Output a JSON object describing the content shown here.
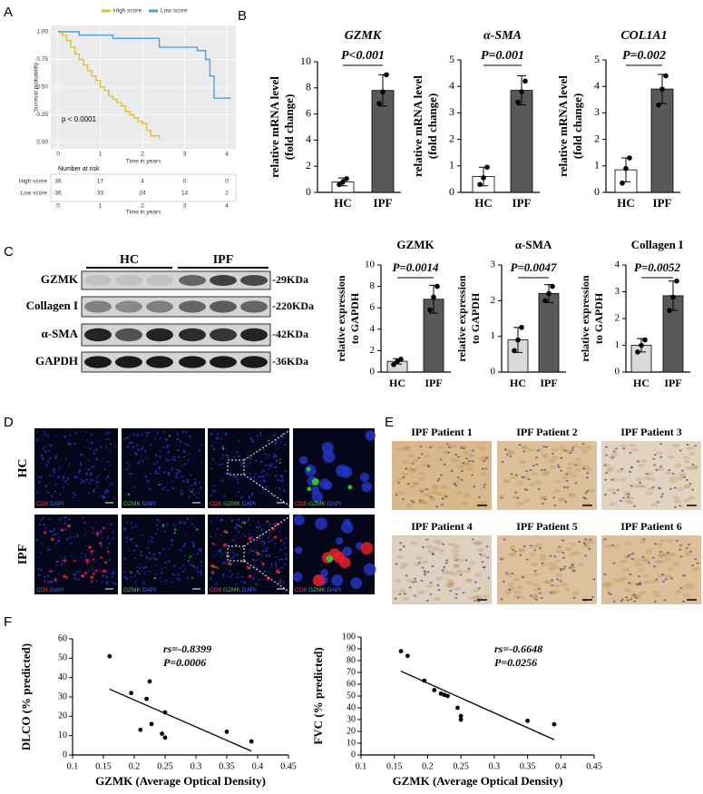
{
  "panel_labels": [
    "A",
    "B",
    "C",
    "D",
    "E",
    "F"
  ],
  "chart_data": [
    {
      "type": "step",
      "series": [
        {
          "name": "High score",
          "color": "#e6bf2e",
          "x": [
            0,
            0.1,
            0.2,
            0.3,
            0.4,
            0.5,
            0.6,
            0.7,
            0.8,
            0.9,
            1.0,
            1.1,
            1.2,
            1.3,
            1.4,
            1.5,
            1.6,
            1.7,
            1.8,
            1.9,
            2.0,
            2.1,
            2.2,
            2.4
          ],
          "values": [
            1,
            0.97,
            0.92,
            0.86,
            0.8,
            0.75,
            0.7,
            0.65,
            0.6,
            0.56,
            0.5,
            0.47,
            0.42,
            0.39,
            0.36,
            0.33,
            0.28,
            0.25,
            0.22,
            0.19,
            0.17,
            0.11,
            0.06,
            0.03
          ]
        },
        {
          "name": "Low score",
          "color": "#4aa3df",
          "x": [
            0,
            0.5,
            1.3,
            2.4,
            3.3,
            3.5,
            3.6,
            3.7,
            4.1
          ],
          "values": [
            1,
            0.97,
            0.94,
            0.86,
            0.83,
            0.75,
            0.6,
            0.4,
            0.4
          ]
        }
      ],
      "xlim": [
        0,
        4
      ],
      "xticks": [
        0,
        1,
        2,
        3,
        4
      ],
      "ylim": [
        0,
        1
      ],
      "yticks": [
        {
          "value": 0,
          "label": "0.00"
        },
        {
          "value": 0.25,
          "label": "0.25"
        },
        {
          "value": 0.5,
          "label": "0.50"
        },
        {
          "value": 0.75,
          "label": "0.75"
        },
        {
          "value": 1,
          "label": "1.00"
        }
      ],
      "xlabel": "Time in years",
      "ylabel": "Survival probability",
      "annotation": "p < 0.0001",
      "risk_table": {
        "title": "Number at risk",
        "xticks": [
          0,
          1,
          2,
          3,
          4
        ],
        "xlabel": "Time in years",
        "rows": [
          {
            "name": "High score",
            "values": [
              36,
              17,
              4,
              0,
              0
            ]
          },
          {
            "name": "Low score",
            "values": [
              36,
              33,
              24,
              14,
              2
            ]
          }
        ]
      }
    },
    {
      "type": "bar",
      "title": "GZMK",
      "categories": [
        "HC",
        "IPF"
      ],
      "values": [
        0.8,
        7.8
      ],
      "errors": [
        0.3,
        1.2
      ],
      "points": [
        [
          0.6,
          0.8,
          1.05
        ],
        [
          6.8,
          7.7,
          9.0
        ]
      ],
      "colors": [
        "#ffffff",
        "#595959"
      ],
      "ylim": [
        0,
        10
      ],
      "yticks": [
        0,
        2,
        4,
        6,
        8,
        10
      ],
      "ylabel": [
        "relative mRNA level",
        "(fold change)"
      ],
      "annotation": "P<0.001"
    },
    {
      "type": "bar",
      "title": "α-SMA",
      "categories": [
        "HC",
        "IPF"
      ],
      "values": [
        0.6,
        3.85
      ],
      "errors": [
        0.35,
        0.55
      ],
      "points": [
        [
          0.3,
          0.55,
          0.95
        ],
        [
          3.4,
          3.8,
          4.2
        ]
      ],
      "colors": [
        "#ffffff",
        "#595959"
      ],
      "ylim": [
        0,
        5
      ],
      "yticks": [
        0,
        1,
        2,
        3,
        4,
        5
      ],
      "ylabel": [
        "relative mRNA level",
        "(fold change)"
      ],
      "annotation": "P=0.001"
    },
    {
      "type": "bar",
      "title": "COL1A1",
      "categories": [
        "HC",
        "IPF"
      ],
      "values": [
        0.85,
        3.9
      ],
      "errors": [
        0.45,
        0.55
      ],
      "points": [
        [
          0.35,
          0.9,
          1.3
        ],
        [
          3.3,
          3.9,
          4.4
        ]
      ],
      "colors": [
        "#ffffff",
        "#595959"
      ],
      "ylim": [
        0,
        5
      ],
      "yticks": [
        0,
        1,
        2,
        3,
        4,
        5
      ],
      "ylabel": [
        "relative mRNA level",
        "(fold change)"
      ],
      "annotation": "P=0.002"
    },
    {
      "type": "bar",
      "title": "GZMK",
      "categories": [
        "HC",
        "IPF"
      ],
      "values": [
        1.0,
        6.8
      ],
      "errors": [
        0.25,
        1.3
      ],
      "points": [
        [
          0.7,
          1.0,
          1.2
        ],
        [
          5.8,
          7.0,
          8.0
        ]
      ],
      "colors": [
        "#d9d9d9",
        "#595959"
      ],
      "ylim": [
        0,
        10
      ],
      "yticks": [
        0,
        2,
        4,
        6,
        8,
        10
      ],
      "ylabel": [
        "relative expression",
        "to GAPDH"
      ],
      "annotation": "P=0.0014"
    },
    {
      "type": "bar",
      "title": "α-SMA",
      "categories": [
        "HC",
        "IPF"
      ],
      "values": [
        0.9,
        2.2
      ],
      "errors": [
        0.35,
        0.25
      ],
      "points": [
        [
          0.6,
          0.9,
          1.25
        ],
        [
          2.0,
          2.2,
          2.4
        ]
      ],
      "colors": [
        "#d9d9d9",
        "#595959"
      ],
      "ylim": [
        0,
        3
      ],
      "yticks": [
        0,
        1,
        2,
        3
      ],
      "ylabel": [
        "relative expression",
        "to GAPDH"
      ],
      "annotation": "P=0.0047"
    },
    {
      "type": "bar",
      "title": "Collagen I",
      "categories": [
        "HC",
        "IPF"
      ],
      "values": [
        1.0,
        2.85
      ],
      "errors": [
        0.25,
        0.55
      ],
      "points": [
        [
          0.75,
          1.0,
          1.2
        ],
        [
          2.3,
          2.8,
          3.4
        ]
      ],
      "colors": [
        "#d9d9d9",
        "#595959"
      ],
      "ylim": [
        0,
        4
      ],
      "yticks": [
        0,
        1,
        2,
        3,
        4
      ],
      "ylabel": [
        "relative expression",
        "to GAPDH"
      ],
      "annotation": "P=0.0052"
    },
    {
      "type": "scatter",
      "x": [
        0.16,
        0.195,
        0.21,
        0.22,
        0.225,
        0.228,
        0.245,
        0.25,
        0.25,
        0.35,
        0.39
      ],
      "values": [
        51,
        32,
        13,
        29,
        38,
        16,
        11,
        22,
        9,
        12,
        7
      ],
      "fit": {
        "x": [
          0.16,
          0.39
        ],
        "values": [
          34,
          2
        ]
      },
      "xlim": [
        0.1,
        0.45
      ],
      "xticks": [
        0.1,
        0.15,
        0.2,
        0.25,
        0.3,
        0.35,
        0.4,
        0.45
      ],
      "ylim": [
        0,
        60
      ],
      "yticks": [
        0,
        10,
        20,
        30,
        40,
        50,
        60
      ],
      "xlabel": "GZMK (Average Optical Density)",
      "ylabel": "DLCO (% predicted)",
      "annotations": [
        "rs=-0.8399",
        "P=0.0006"
      ]
    },
    {
      "type": "scatter",
      "x": [
        0.16,
        0.17,
        0.195,
        0.21,
        0.22,
        0.225,
        0.23,
        0.245,
        0.25,
        0.25,
        0.35,
        0.39
      ],
      "values": [
        88,
        84,
        63,
        55,
        52,
        51,
        50,
        40,
        33,
        30,
        29,
        26
      ],
      "fit": {
        "x": [
          0.16,
          0.39
        ],
        "values": [
          71,
          13
        ]
      },
      "xlim": [
        0.1,
        0.45
      ],
      "xticks": [
        0.1,
        0.15,
        0.2,
        0.25,
        0.3,
        0.35,
        0.4,
        0.45
      ],
      "ylim": [
        0,
        100
      ],
      "yticks": [
        0,
        10,
        20,
        30,
        40,
        50,
        60,
        70,
        80,
        90,
        100
      ],
      "xlabel": "GZMK (Average Optical Density)",
      "ylabel": "FVC (% predicted)",
      "annotations": [
        "rs=-0.6648",
        "P=0.0256"
      ]
    }
  ],
  "western_blot": {
    "groups": [
      "HC",
      "IPF"
    ],
    "rows": [
      {
        "protein": "GZMK",
        "size": "-29KDa"
      },
      {
        "protein": "Collagen I",
        "size": "-220KDa"
      },
      {
        "protein": "α-SMA",
        "size": "-42KDa"
      },
      {
        "protein": "GAPDH",
        "size": "-36KDa"
      }
    ]
  },
  "immunofluorescence": {
    "rows": [
      "HC",
      "IPF"
    ],
    "captions": [
      [
        {
          "text": "CD8",
          "color": "#ff3b3b"
        },
        {
          "text": "DAPI",
          "color": "#4f6bff"
        }
      ],
      [
        {
          "text": "GZMK",
          "color": "#3ad13a"
        },
        {
          "text": "DAPI",
          "color": "#4f6bff"
        }
      ],
      [
        {
          "text": "CD8",
          "color": "#ff3b3b"
        },
        {
          "text": "GZMK",
          "color": "#3ad13a"
        },
        {
          "text": "DAPI",
          "color": "#4f6bff"
        }
      ],
      [
        {
          "text": "CD8",
          "color": "#ff3b3b"
        },
        {
          "text": "GZMK",
          "color": "#3ad13a"
        },
        {
          "text": "DAPI",
          "color": "#4f6bff"
        }
      ]
    ]
  },
  "ihc": {
    "titles": [
      "IPF Patient 1",
      "IPF Patient 2",
      "IPF Patient 3",
      "IPF Patient 4",
      "IPF Patient 5",
      "IPF Patient 6"
    ]
  }
}
